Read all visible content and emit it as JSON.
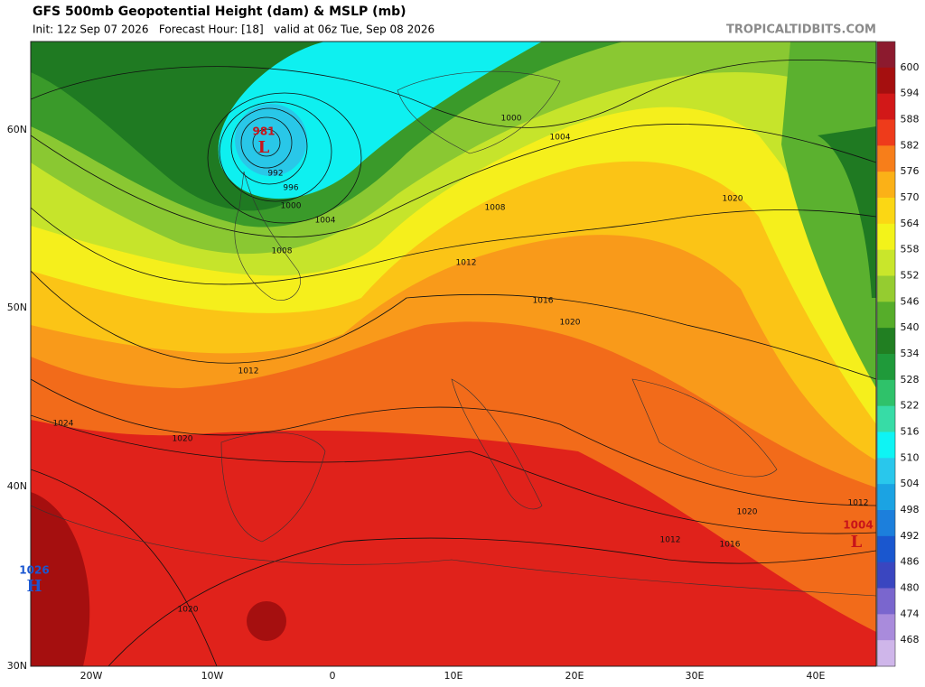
{
  "header": {
    "title": "GFS 500mb Geopotential Height (dam) & MSLP (mb)",
    "subtitle": "Init: 12z Sep 07 2026   Forecast Hour: [18]   valid at 06z Tue, Sep 08 2026",
    "brand": "TROPICALTIDBITS.COM"
  },
  "axes": {
    "lat_labels": [
      "60N",
      "50N",
      "40N",
      "30N"
    ],
    "lon_labels": [
      "20W",
      "10W",
      "0",
      "10E",
      "20E",
      "30E",
      "40E"
    ]
  },
  "colorbar": {
    "levels": [
      600,
      594,
      588,
      582,
      576,
      570,
      564,
      558,
      552,
      546,
      540,
      534,
      528,
      522,
      516,
      510,
      504,
      498,
      492,
      486,
      480,
      474,
      468
    ],
    "colors": [
      "#8c1a2e",
      "#a50f0f",
      "#d21818",
      "#ee3b1b",
      "#f77e1a",
      "#fbb117",
      "#fbd714",
      "#f3f31a",
      "#c9e62b",
      "#95cc30",
      "#56ad2a",
      "#217f22",
      "#1f9a3a",
      "#2fc26a",
      "#37dca6",
      "#0ef4f4",
      "#29c7ec",
      "#1ba3e3",
      "#1c7fdc",
      "#1a57cf",
      "#3a46c0",
      "#7a66ce",
      "#a98bdc",
      "#cfb6ea",
      "#e9d9f3",
      "#f4eef8",
      "#d9ede3",
      "#a9e2c4"
    ]
  },
  "isobar_labels": [
    1000,
    1004,
    1008,
    1012,
    1016,
    1020,
    1020,
    992,
    996,
    1000,
    1004,
    1008,
    1012,
    1024,
    1020,
    1020,
    1016,
    1012,
    1012,
    1020
  ],
  "centers": [
    {
      "value": 981,
      "symbol": "L"
    },
    {
      "value": 1026,
      "symbol": "H"
    },
    {
      "value": 1004,
      "symbol": "L"
    }
  ]
}
